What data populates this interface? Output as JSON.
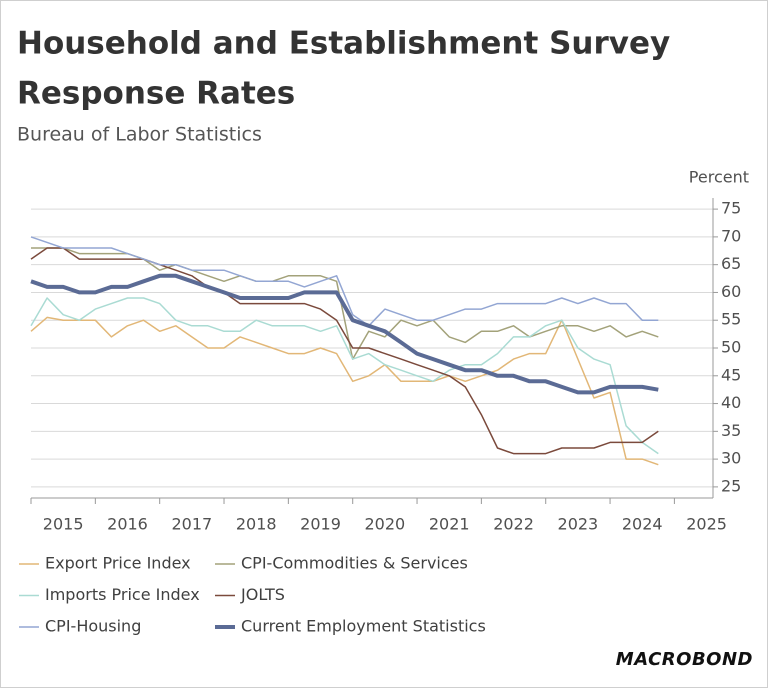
{
  "chart_data": {
    "type": "line",
    "title_lines": [
      "Household and Establishment Survey",
      "Response Rates"
    ],
    "subtitle": "Bureau of Labor Statistics",
    "y_axis_label": "Percent",
    "source_logo": "MACROBOND",
    "x": [
      2015,
      2015.25,
      2015.5,
      2015.75,
      2016,
      2016.25,
      2016.5,
      2016.75,
      2017,
      2017.25,
      2017.5,
      2017.75,
      2018,
      2018.25,
      2018.5,
      2018.75,
      2019,
      2019.25,
      2019.5,
      2019.75,
      2020,
      2020.25,
      2020.5,
      2020.75,
      2021,
      2021.25,
      2021.5,
      2021.75,
      2022,
      2022.25,
      2022.5,
      2022.75,
      2023,
      2023.25,
      2023.5,
      2023.75,
      2024,
      2024.25,
      2024.5,
      2024.75
    ],
    "xlim": [
      2015,
      2025.6
    ],
    "xticks": [
      {
        "value": 2015,
        "label": "2015"
      },
      {
        "value": 2016,
        "label": "2016"
      },
      {
        "value": 2017,
        "label": "2017"
      },
      {
        "value": 2018,
        "label": "2018"
      },
      {
        "value": 2019,
        "label": "2019"
      },
      {
        "value": 2020,
        "label": "2020"
      },
      {
        "value": 2021,
        "label": "2021"
      },
      {
        "value": 2022,
        "label": "2022"
      },
      {
        "value": 2023,
        "label": "2023"
      },
      {
        "value": 2024,
        "label": "2024"
      },
      {
        "value": 2025,
        "label": "2025"
      }
    ],
    "ylim": [
      23,
      77
    ],
    "yticks": [
      25,
      30,
      35,
      40,
      45,
      50,
      55,
      60,
      65,
      70,
      75
    ],
    "grid": true,
    "series": [
      {
        "name": "Export Price Index",
        "color": "#e2b777",
        "width": 1.5,
        "values": [
          53,
          55.5,
          55,
          55,
          55,
          52,
          54,
          55,
          53,
          54,
          52,
          50,
          50,
          52,
          51,
          50,
          49,
          49,
          50,
          49,
          44,
          45,
          47,
          44,
          44,
          44,
          45,
          44,
          45,
          46,
          48,
          49,
          49,
          55,
          48,
          41,
          42,
          30,
          30,
          29
        ]
      },
      {
        "name": "CPI-Commodities & Services",
        "color": "#a3a27a",
        "width": 1.5,
        "values": [
          68,
          68,
          68,
          67,
          67,
          67,
          67,
          66,
          64,
          65,
          64,
          63,
          62,
          63,
          62,
          62,
          63,
          63,
          63,
          62,
          48,
          53,
          52,
          55,
          54,
          55,
          52,
          51,
          53,
          53,
          54,
          52,
          53,
          54,
          54,
          53,
          54,
          52,
          53,
          52
        ]
      },
      {
        "name": "Imports Price Index",
        "color": "#aadbd3",
        "width": 1.5,
        "values": [
          54,
          59,
          56,
          55,
          57,
          58,
          59,
          59,
          58,
          55,
          54,
          54,
          53,
          53,
          55,
          54,
          54,
          54,
          53,
          54,
          48,
          49,
          47,
          46,
          45,
          44,
          46,
          47,
          47,
          49,
          52,
          52,
          54,
          55,
          50,
          48,
          47,
          36,
          33,
          31
        ]
      },
      {
        "name": "JOLTS",
        "color": "#7b4a3c",
        "width": 1.5,
        "values": [
          66,
          68,
          68,
          66,
          66,
          66,
          66,
          66,
          65,
          64,
          63,
          61,
          60,
          58,
          58,
          58,
          58,
          58,
          57,
          55,
          50,
          50,
          49,
          48,
          47,
          46,
          45,
          43,
          38,
          32,
          31,
          31,
          31,
          32,
          32,
          32,
          33,
          33,
          33,
          35
        ]
      },
      {
        "name": "CPI-Housing",
        "color": "#93a6d3",
        "width": 1.5,
        "values": [
          70,
          69,
          68,
          68,
          68,
          68,
          67,
          66,
          65,
          65,
          64,
          64,
          64,
          63,
          62,
          62,
          62,
          61,
          62,
          63,
          56,
          54,
          57,
          56,
          55,
          55,
          56,
          57,
          57,
          58,
          58,
          58,
          58,
          59,
          58,
          59,
          58,
          58,
          55,
          55
        ]
      },
      {
        "name": "Current Employment Statistics",
        "color": "#5b6b95",
        "width": 4,
        "values": [
          62,
          61,
          61,
          60,
          60,
          61,
          61,
          62,
          63,
          63,
          62,
          61,
          60,
          59,
          59,
          59,
          59,
          60,
          60,
          60,
          55,
          54,
          53,
          51,
          49,
          48,
          47,
          46,
          46,
          45,
          45,
          44,
          44,
          43,
          42,
          42,
          43,
          43,
          43,
          42.5
        ]
      }
    ]
  }
}
